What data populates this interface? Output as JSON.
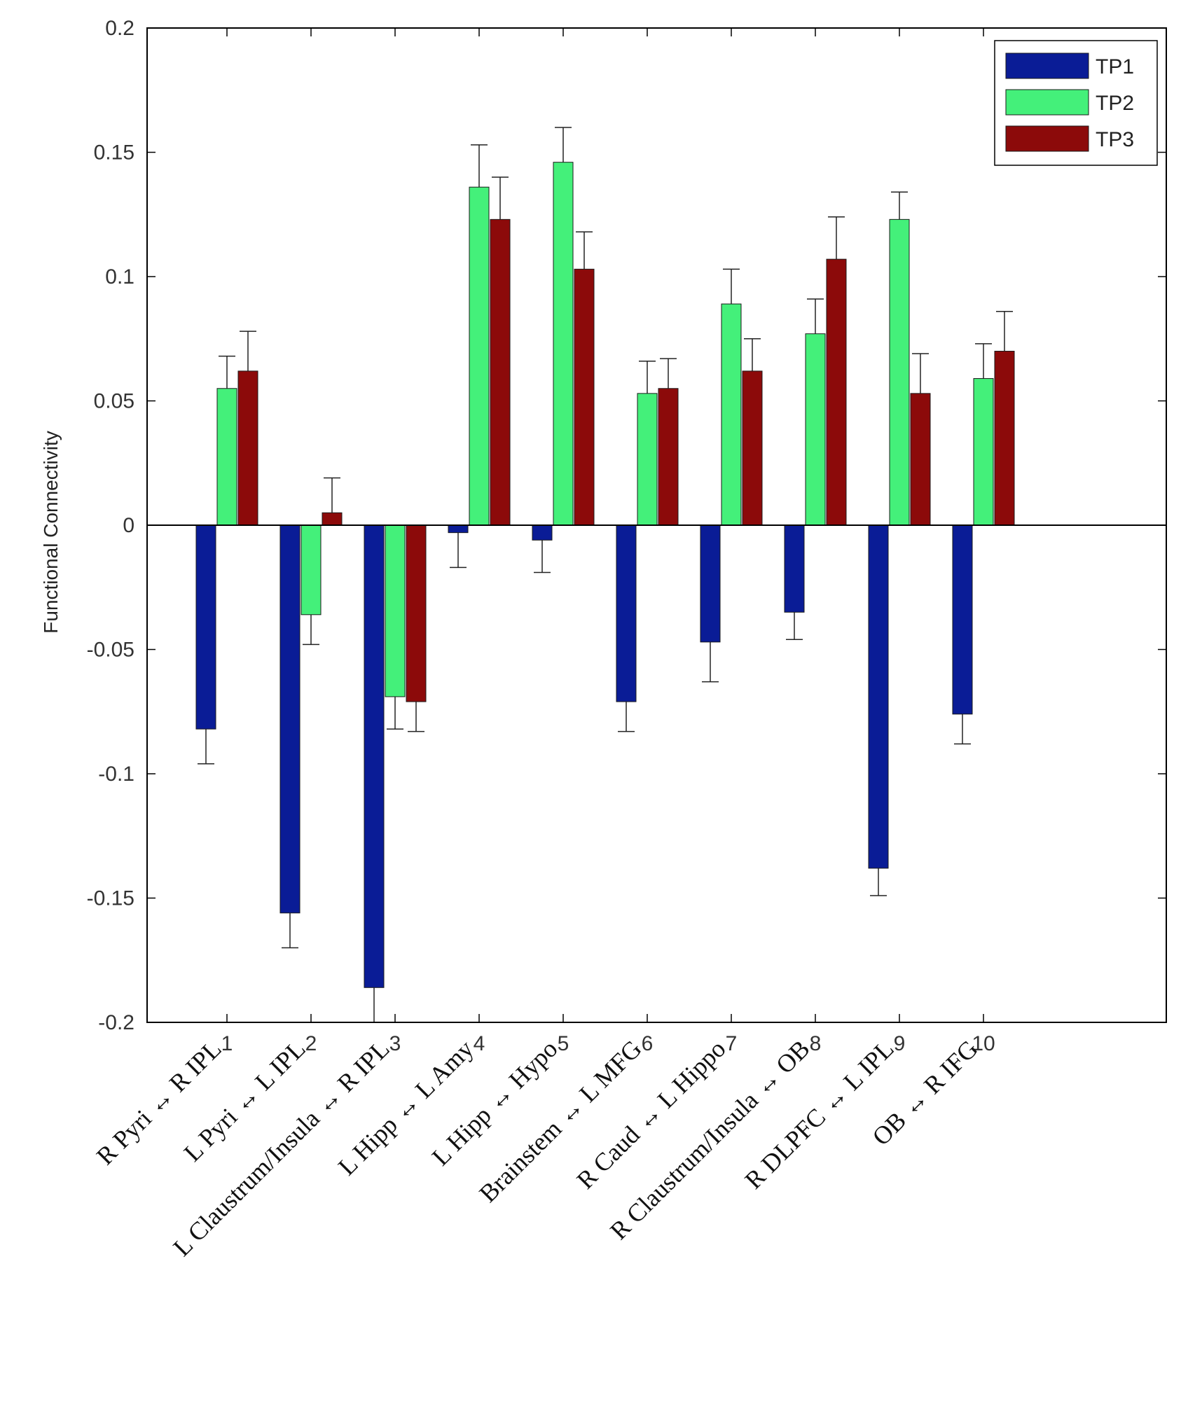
{
  "chart_data": {
    "type": "bar",
    "title": "",
    "xlabel": "",
    "ylabel": "Functional Connectivity",
    "ylim": [
      -0.2,
      0.2
    ],
    "yticks": [
      0.2,
      0.15,
      0.1,
      0.05,
      0,
      -0.05,
      -0.1,
      -0.15,
      -0.2
    ],
    "ytick_labels": [
      "0.2",
      "0.15",
      "0.1",
      "0.05",
      "0",
      "-0.05",
      "-0.1",
      "-0.15",
      "-0.2"
    ],
    "categories": [
      "1",
      "2",
      "3",
      "4",
      "5",
      "6",
      "7",
      "8",
      "9",
      "10"
    ],
    "connection_labels": [
      {
        "left": "R Pyri",
        "right": "R IPL"
      },
      {
        "left": "L Pyri",
        "right": "L IPL"
      },
      {
        "left": "L Claustrum/Insula",
        "right": "R IPL"
      },
      {
        "left": "L Hipp",
        "right": "L Amy"
      },
      {
        "left": "L Hipp",
        "right": "Hypo"
      },
      {
        "left": "Brainstem",
        "right": "L MFG"
      },
      {
        "left": "R Caud",
        "right": "L Hippo"
      },
      {
        "left": "R Claustrum/Insula",
        "right": "OB"
      },
      {
        "left": "R DLPFC",
        "right": "L IPL"
      },
      {
        "left": "OB",
        "right": "R IFG"
      }
    ],
    "arrow_symbol": "↔",
    "legend_position": "top-right",
    "series": [
      {
        "name": "TP1",
        "color": "#0a1c96",
        "values": [
          -0.082,
          -0.156,
          -0.186,
          -0.003,
          -0.006,
          -0.071,
          -0.047,
          -0.035,
          -0.138,
          -0.076
        ],
        "errors": [
          0.014,
          0.014,
          0.014,
          0.014,
          0.013,
          0.012,
          0.016,
          0.011,
          0.011,
          0.012
        ]
      },
      {
        "name": "TP2",
        "color": "#44f07a",
        "values": [
          0.055,
          -0.036,
          -0.069,
          0.136,
          0.146,
          0.053,
          0.089,
          0.077,
          0.123,
          0.059
        ],
        "errors": [
          0.013,
          0.012,
          0.013,
          0.017,
          0.014,
          0.013,
          0.014,
          0.014,
          0.011,
          0.014
        ]
      },
      {
        "name": "TP3",
        "color": "#8c0a0a",
        "values": [
          0.062,
          0.005,
          -0.071,
          0.123,
          0.103,
          0.055,
          0.062,
          0.107,
          0.053,
          0.07
        ],
        "errors": [
          0.016,
          0.014,
          0.012,
          0.017,
          0.015,
          0.012,
          0.013,
          0.017,
          0.016,
          0.016
        ]
      }
    ]
  }
}
